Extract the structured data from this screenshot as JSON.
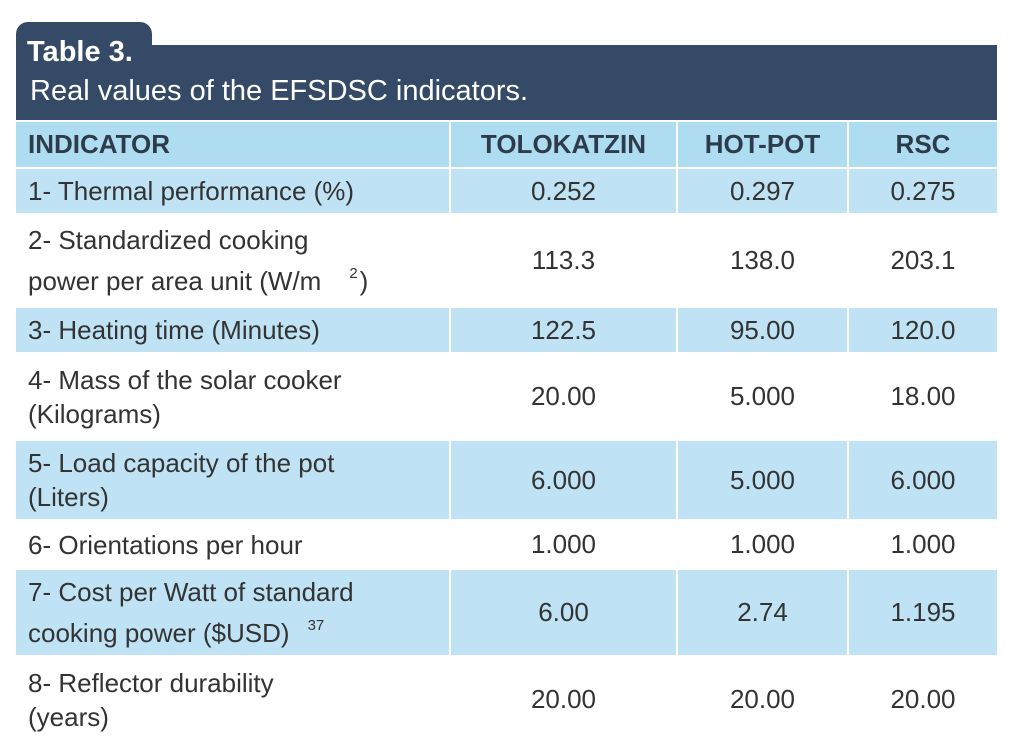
{
  "title": {
    "label": "Table 3.",
    "caption": "Real values of the EFSDSC indicators."
  },
  "columns": [
    "INDICATOR",
    "TOLOKATZIN",
    "HOT-POT",
    "RSC"
  ],
  "rows": [
    {
      "line1": "1- Thermal performance (%)",
      "line2": "",
      "sup": "",
      "tail": "",
      "values": [
        "0.252",
        "0.297",
        "0.275"
      ]
    },
    {
      "line1": "2- Standardized cooking",
      "line2": "power per area unit (W/m",
      "sup": "2",
      "tail": ")",
      "values": [
        "113.3",
        "138.0",
        "203.1"
      ]
    },
    {
      "line1": "3- Heating time (Minutes)",
      "line2": "",
      "sup": "",
      "tail": "",
      "values": [
        "122.5",
        "95.00",
        "120.0"
      ]
    },
    {
      "line1": "4- Mass of the solar cooker",
      "line2": "(Kilograms)",
      "sup": "",
      "tail": "",
      "values": [
        "20.00",
        "5.000",
        "18.00"
      ]
    },
    {
      "line1": "5- Load capacity of the pot",
      "line2": "(Liters)",
      "sup": "",
      "tail": "",
      "values": [
        "6.000",
        "5.000",
        "6.000"
      ]
    },
    {
      "line1": "6- Orientations per hour",
      "line2": "",
      "sup": "",
      "tail": "",
      "values": [
        "1.000",
        "1.000",
        "1.000"
      ]
    },
    {
      "line1": "7- Cost per Watt of standard",
      "line2": "cooking power ($USD)",
      "sup": "37",
      "tail": "",
      "values": [
        "6.00",
        "2.74",
        "1.195"
      ]
    },
    {
      "line1": "8- Reflector durability",
      "line2": "(years)",
      "sup": "",
      "tail": "",
      "values": [
        "20.00",
        "20.00",
        "20.00"
      ]
    }
  ],
  "colors": {
    "header_band": "#354a66",
    "row_shade": "#bfe3f4",
    "header_row": "#aedcf0"
  }
}
